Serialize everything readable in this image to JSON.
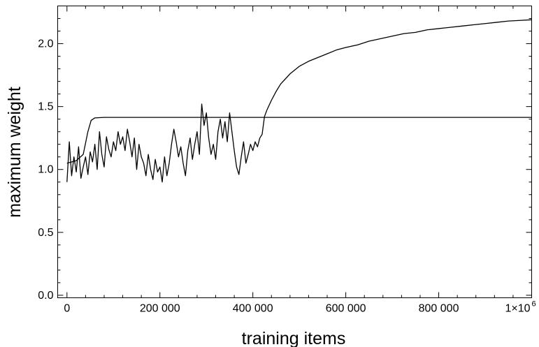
{
  "chart_data": {
    "type": "line",
    "title": "",
    "xlabel": "training items",
    "ylabel": "maximum weight",
    "xlim": [
      -20000,
      1000000
    ],
    "ylim": [
      -0.02,
      2.3
    ],
    "grid": false,
    "x_ticks": [
      {
        "value": 0,
        "label": "0"
      },
      {
        "value": 200000,
        "label": "200 000"
      },
      {
        "value": 400000,
        "label": "400 000"
      },
      {
        "value": 600000,
        "label": "600 000"
      },
      {
        "value": 800000,
        "label": "800 000"
      },
      {
        "value": 1000000,
        "label": "1×10",
        "exponent": "6"
      }
    ],
    "y_ticks": [
      {
        "value": 0.0,
        "label": "0.0"
      },
      {
        "value": 0.5,
        "label": "0.5"
      },
      {
        "value": 1.0,
        "label": "1.0"
      },
      {
        "value": 1.5,
        "label": "1.5"
      },
      {
        "value": 2.0,
        "label": "2.0"
      }
    ],
    "series": [
      {
        "x": [
          0,
          20000,
          35000,
          45000,
          52000,
          60000,
          80000,
          100000,
          300000,
          600000,
          1000000
        ],
        "y": [
          1.05,
          1.07,
          1.12,
          1.3,
          1.39,
          1.41,
          1.414,
          1.414,
          1.414,
          1.414,
          1.414
        ]
      },
      {
        "x": [
          0,
          5000,
          10000,
          15000,
          20000,
          25000,
          30000,
          35000,
          40000,
          45000,
          50000,
          55000,
          60000,
          65000,
          70000,
          75000,
          80000,
          85000,
          90000,
          95000,
          100000,
          105000,
          110000,
          115000,
          120000,
          125000,
          130000,
          135000,
          140000,
          145000,
          150000,
          155000,
          160000,
          165000,
          170000,
          175000,
          180000,
          185000,
          190000,
          195000,
          200000,
          205000,
          210000,
          215000,
          220000,
          225000,
          230000,
          235000,
          240000,
          245000,
          250000,
          255000,
          260000,
          265000,
          270000,
          275000,
          280000,
          285000,
          290000,
          295000,
          300000,
          305000,
          310000,
          315000,
          320000,
          325000,
          330000,
          335000,
          340000,
          345000,
          350000,
          355000,
          360000,
          365000,
          370000,
          375000,
          380000,
          385000,
          390000,
          395000,
          400000,
          405000,
          410000,
          415000,
          420000,
          425000,
          430000,
          440000,
          450000,
          460000,
          470000,
          480000,
          490000,
          500000,
          520000,
          540000,
          560000,
          580000,
          600000,
          625000,
          650000,
          675000,
          700000,
          725000,
          750000,
          775000,
          800000,
          825000,
          850000,
          875000,
          900000,
          925000,
          950000,
          975000,
          1000000
        ],
        "y": [
          0.9,
          1.22,
          0.95,
          1.1,
          0.98,
          1.18,
          0.93,
          1.02,
          1.1,
          0.96,
          1.14,
          1.06,
          1.2,
          1.0,
          1.3,
          1.12,
          1.02,
          1.26,
          1.16,
          1.1,
          1.22,
          1.15,
          1.3,
          1.2,
          1.26,
          1.15,
          1.32,
          1.22,
          1.1,
          1.25,
          1.0,
          1.2,
          1.1,
          1.05,
          0.95,
          1.12,
          1.0,
          0.92,
          1.08,
          0.98,
          1.02,
          0.9,
          1.1,
          0.95,
          1.05,
          1.2,
          1.32,
          1.22,
          1.1,
          1.18,
          1.05,
          0.95,
          1.15,
          1.25,
          1.08,
          1.2,
          1.3,
          1.12,
          1.52,
          1.35,
          1.45,
          1.25,
          1.12,
          1.2,
          1.08,
          1.3,
          1.4,
          1.25,
          1.38,
          1.22,
          1.45,
          1.3,
          1.15,
          1.02,
          0.96,
          1.1,
          1.22,
          1.05,
          1.12,
          1.2,
          1.15,
          1.22,
          1.18,
          1.25,
          1.28,
          1.42,
          1.47,
          1.55,
          1.62,
          1.68,
          1.72,
          1.76,
          1.79,
          1.82,
          1.86,
          1.89,
          1.92,
          1.95,
          1.97,
          1.99,
          2.02,
          2.04,
          2.06,
          2.08,
          2.09,
          2.11,
          2.12,
          2.13,
          2.14,
          2.15,
          2.16,
          2.17,
          2.18,
          2.185,
          2.19
        ]
      }
    ]
  }
}
